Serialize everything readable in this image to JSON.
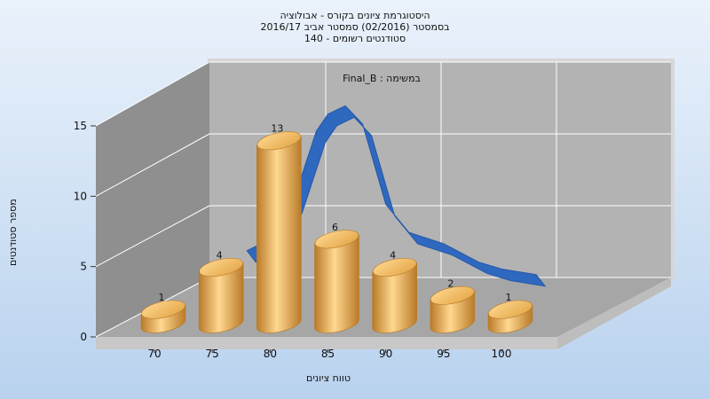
{
  "chart_data": {
    "type": "bar",
    "title_lines": [
      "היסטוגרמת ציונים בקורס - אבולוציה",
      "בסמסטר (02/2016) סמסטר אביב 2016/17",
      "סטודנטים רשומים - 140"
    ],
    "annotation": "במשימה : Final_B",
    "xlabel": "טווח ציונים",
    "ylabel": "מספר סטודנטים",
    "x_ticks": [
      70,
      75,
      80,
      85,
      90,
      95,
      100
    ],
    "y_ticks": [
      0,
      5,
      10,
      15
    ],
    "ylim": [
      0,
      15
    ],
    "categories": [
      70,
      75,
      80,
      85,
      90,
      95,
      100
    ],
    "values": [
      1,
      4,
      13,
      6,
      4,
      2,
      1
    ],
    "curve": {
      "x": [
        78,
        80,
        82,
        84,
        85,
        86.5,
        88,
        90,
        92,
        95,
        98,
        100,
        103
      ],
      "y": [
        5.5,
        6.3,
        9.0,
        14.0,
        15.2,
        15.8,
        14.5,
        8.8,
        6.8,
        6.0,
        4.7,
        4.2,
        3.8
      ]
    },
    "colors": {
      "bar": "#e2a445",
      "bar_light": "#ffd890",
      "bar_dark": "#b97a28",
      "curve": "#2f68bf",
      "back_wall": "#b3b3b3",
      "side_wall": "#8f8f8f",
      "floor": "#a6a6a6",
      "frame_shadow": "#d7d7d7"
    },
    "grid": true
  }
}
